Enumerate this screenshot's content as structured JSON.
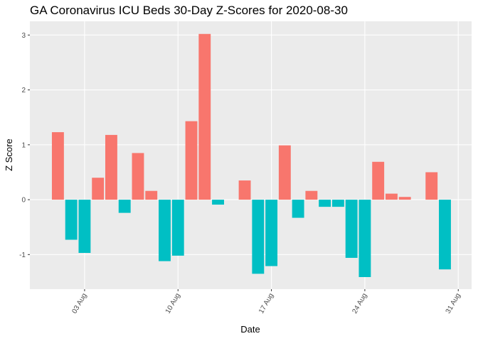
{
  "chart_data": {
    "type": "bar",
    "title": "GA Coronavirus ICU Beds 30-Day Z-Scores for 2020-08-30",
    "x_label": "Date",
    "y_label": "Z Score",
    "x": [
      1,
      2,
      3,
      4,
      5,
      6,
      7,
      8,
      9,
      10,
      11,
      12,
      13,
      14,
      15,
      16,
      17,
      18,
      19,
      20,
      21,
      22,
      23,
      24,
      25,
      26,
      27,
      28,
      29,
      30
    ],
    "values": [
      1.23,
      -0.73,
      -0.97,
      0.4,
      1.18,
      -0.24,
      0.85,
      0.16,
      -1.12,
      -1.02,
      1.43,
      3.02,
      -0.09,
      null,
      0.35,
      -1.35,
      -1.21,
      0.99,
      -0.33,
      0.16,
      -0.13,
      -0.13,
      -1.06,
      -1.41,
      0.69,
      0.11,
      0.05,
      null,
      0.5,
      -1.27
    ],
    "positive_color": "#F8766D",
    "negative_color": "#00BFC4",
    "xlim": [
      -1.1,
      32.0
    ],
    "xticks": [
      {
        "value": 3,
        "label": "03 Aug"
      },
      {
        "value": 10,
        "label": "10 Aug"
      },
      {
        "value": 17,
        "label": "17 Aug"
      },
      {
        "value": 24,
        "label": "24 Aug"
      },
      {
        "value": 31,
        "label": "31 Aug"
      }
    ],
    "ylim": [
      -1.63,
      3.25
    ],
    "yticks": [
      -1,
      0,
      1,
      2,
      3
    ],
    "grid": true
  }
}
